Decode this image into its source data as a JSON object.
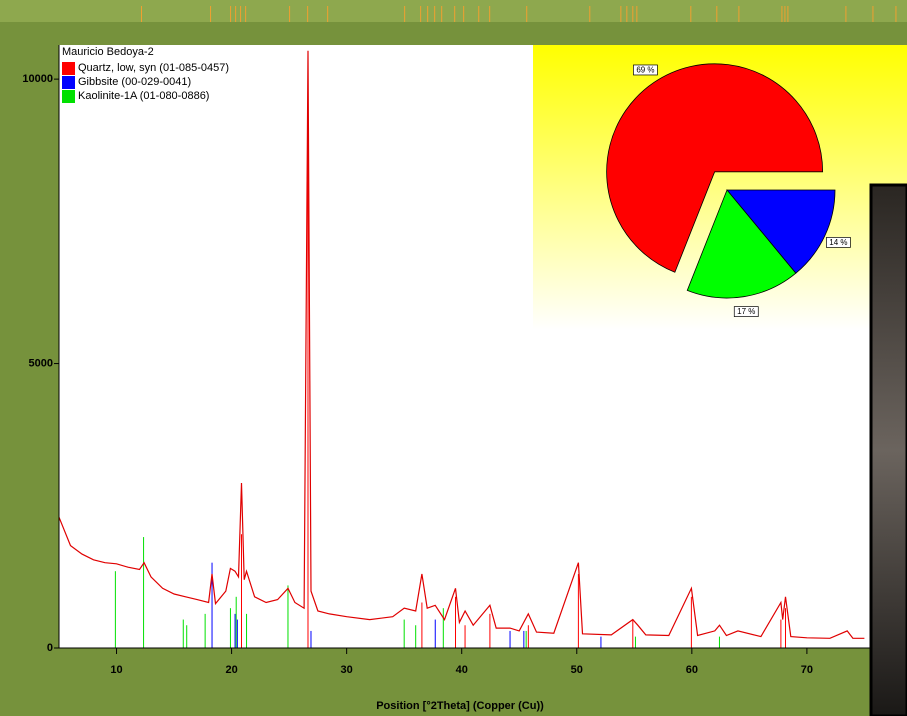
{
  "chart_data": [
    {
      "type": "line",
      "title": "Mauricio Bedoya-2",
      "x_label": "Position [°2Theta] (Copper (Cu))",
      "xlim": [
        5,
        78.7
      ],
      "xticks": [
        10,
        20,
        30,
        40,
        50,
        60,
        70
      ],
      "ylim": [
        0,
        10600
      ],
      "yticks": [
        0,
        5000,
        10000
      ],
      "pattern_color": "#e00000",
      "pattern_x": [
        5,
        6,
        7,
        8,
        9,
        10,
        11,
        12,
        12.4,
        13,
        14,
        15,
        16,
        17,
        18,
        18.3,
        18.6,
        19.5,
        19.9,
        20.3,
        20.6,
        20.86,
        21.1,
        21.3,
        22,
        23,
        24,
        24.9,
        25.5,
        26.3,
        26.64,
        26.9,
        27.5,
        28.5,
        30,
        32,
        34,
        35,
        36,
        36.54,
        37,
        37.7,
        38.5,
        39.46,
        39.8,
        40.29,
        41,
        42.45,
        43,
        44.2,
        45,
        45.79,
        46.5,
        48,
        50.14,
        50.5,
        53,
        54.87,
        55.3,
        56,
        58,
        59.96,
        60.5,
        62,
        62.4,
        63,
        64,
        66,
        67.74,
        67.9,
        68.14,
        68.6,
        70,
        72,
        73.5,
        74,
        75
      ],
      "pattern": [
        2300,
        1800,
        1650,
        1550,
        1500,
        1480,
        1420,
        1380,
        1500,
        1250,
        1050,
        950,
        900,
        850,
        800,
        1300,
        780,
        1000,
        1400,
        1350,
        1250,
        2900,
        1200,
        1350,
        900,
        800,
        850,
        1050,
        800,
        700,
        10500,
        1000,
        650,
        600,
        550,
        500,
        550,
        700,
        650,
        1300,
        700,
        750,
        500,
        1050,
        450,
        650,
        400,
        750,
        350,
        350,
        300,
        600,
        280,
        260,
        1500,
        250,
        230,
        500,
        400,
        230,
        220,
        1050,
        220,
        300,
        400,
        220,
        300,
        200,
        800,
        500,
        900,
        200,
        180,
        170,
        300,
        170,
        170
      ],
      "peak_marker_color": "#f0a030",
      "peak_markers": [
        12.17,
        18.17,
        19.91,
        20.35,
        20.78,
        21.22,
        25.04,
        26.61,
        28.35,
        35.04,
        36.43,
        37.04,
        37.65,
        38.26,
        39.39,
        40.17,
        41.48,
        42.43,
        45.65,
        51.13,
        53.83,
        54.35,
        54.87,
        55.22,
        59.91,
        62.17,
        64.09,
        67.83,
        68.09,
        68.35,
        73.39,
        75.74,
        77.74
      ],
      "series": [
        {
          "name": "Quartz, low, syn (01-085-0457)",
          "color": "#ff0000",
          "x": [
            20.86,
            26.64,
            36.54,
            39.46,
            40.29,
            42.45,
            45.79,
            50.14,
            54.87,
            59.96,
            67.74,
            68.14
          ],
          "values": [
            2000,
            10000,
            800,
            900,
            400,
            600,
            400,
            1300,
            500,
            900,
            500,
            700
          ]
        },
        {
          "name": "Gibbsite (00-029-0041)",
          "color": "#0000ff",
          "x": [
            18.3,
            20.3,
            20.5,
            26.9,
            37.7,
            44.2,
            45.4,
            52.1
          ],
          "values": [
            1500,
            600,
            500,
            300,
            500,
            300,
            300,
            200
          ]
        },
        {
          "name": "Kaolinite-1A (01-080-0886)",
          "color": "#00e000",
          "x": [
            9.9,
            12.35,
            15.8,
            16.1,
            17.7,
            19.9,
            20.4,
            21.3,
            24.9,
            35.0,
            36.0,
            38.4,
            45.6,
            55.1,
            62.4
          ],
          "values": [
            1350,
            1950,
            500,
            400,
            600,
            700,
            900,
            600,
            1100,
            500,
            400,
            700,
            300,
            200,
            200
          ]
        }
      ]
    },
    {
      "type": "pie",
      "values": [
        69,
        14,
        17
      ],
      "value_labels": [
        "69 %",
        "14 %",
        "17 %"
      ],
      "colors": [
        "#ff0000",
        "#0000ff",
        "#00ff00"
      ],
      "explode": [
        true,
        false,
        false
      ]
    }
  ]
}
